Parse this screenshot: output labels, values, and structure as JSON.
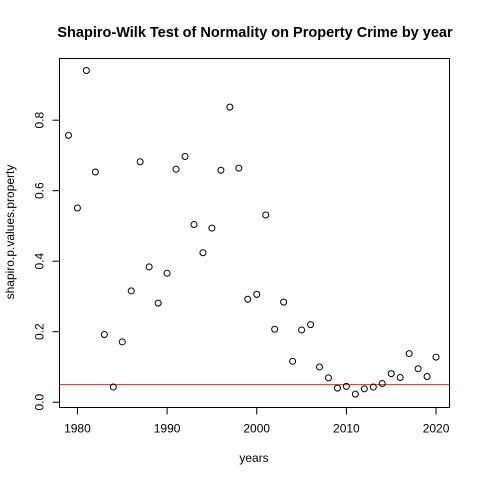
{
  "chart_data": {
    "type": "scatter",
    "title": "Shapiro-Wilk Test of Normality on Property Crime by year",
    "xlabel": "years",
    "ylabel": "shapiro.p.values.property",
    "xlim": [
      1978,
      2021.5
    ],
    "ylim": [
      -0.015,
      0.975
    ],
    "x_ticks": [
      1980,
      1990,
      2000,
      2010,
      2020
    ],
    "y_ticks": [
      0.0,
      0.2,
      0.4,
      0.6,
      0.8
    ],
    "y_tick_labels": [
      "0.0",
      "0.2",
      "0.4",
      "0.6",
      "0.8"
    ],
    "reference_line": {
      "y": 0.05,
      "color": "#e8242a"
    },
    "point_style": "open-circle",
    "x": [
      1979,
      1980,
      1981,
      1982,
      1983,
      1984,
      1985,
      1986,
      1987,
      1988,
      1989,
      1990,
      1991,
      1992,
      1993,
      1994,
      1995,
      1996,
      1997,
      1998,
      1999,
      2000,
      2001,
      2002,
      2003,
      2004,
      2005,
      2006,
      2007,
      2008,
      2009,
      2010,
      2011,
      2012,
      2013,
      2014,
      2015,
      2016,
      2017,
      2018,
      2019,
      2020
    ],
    "y": [
      0.757,
      0.551,
      0.941,
      0.653,
      0.192,
      0.043,
      0.171,
      0.316,
      0.682,
      0.384,
      0.281,
      0.366,
      0.661,
      0.697,
      0.504,
      0.424,
      0.494,
      0.658,
      0.837,
      0.664,
      0.292,
      0.306,
      0.531,
      0.207,
      0.284,
      0.116,
      0.205,
      0.22,
      0.1,
      0.069,
      0.04,
      0.045,
      0.023,
      0.038,
      0.043,
      0.053,
      0.081,
      0.07,
      0.138,
      0.095,
      0.073,
      0.128
    ]
  }
}
